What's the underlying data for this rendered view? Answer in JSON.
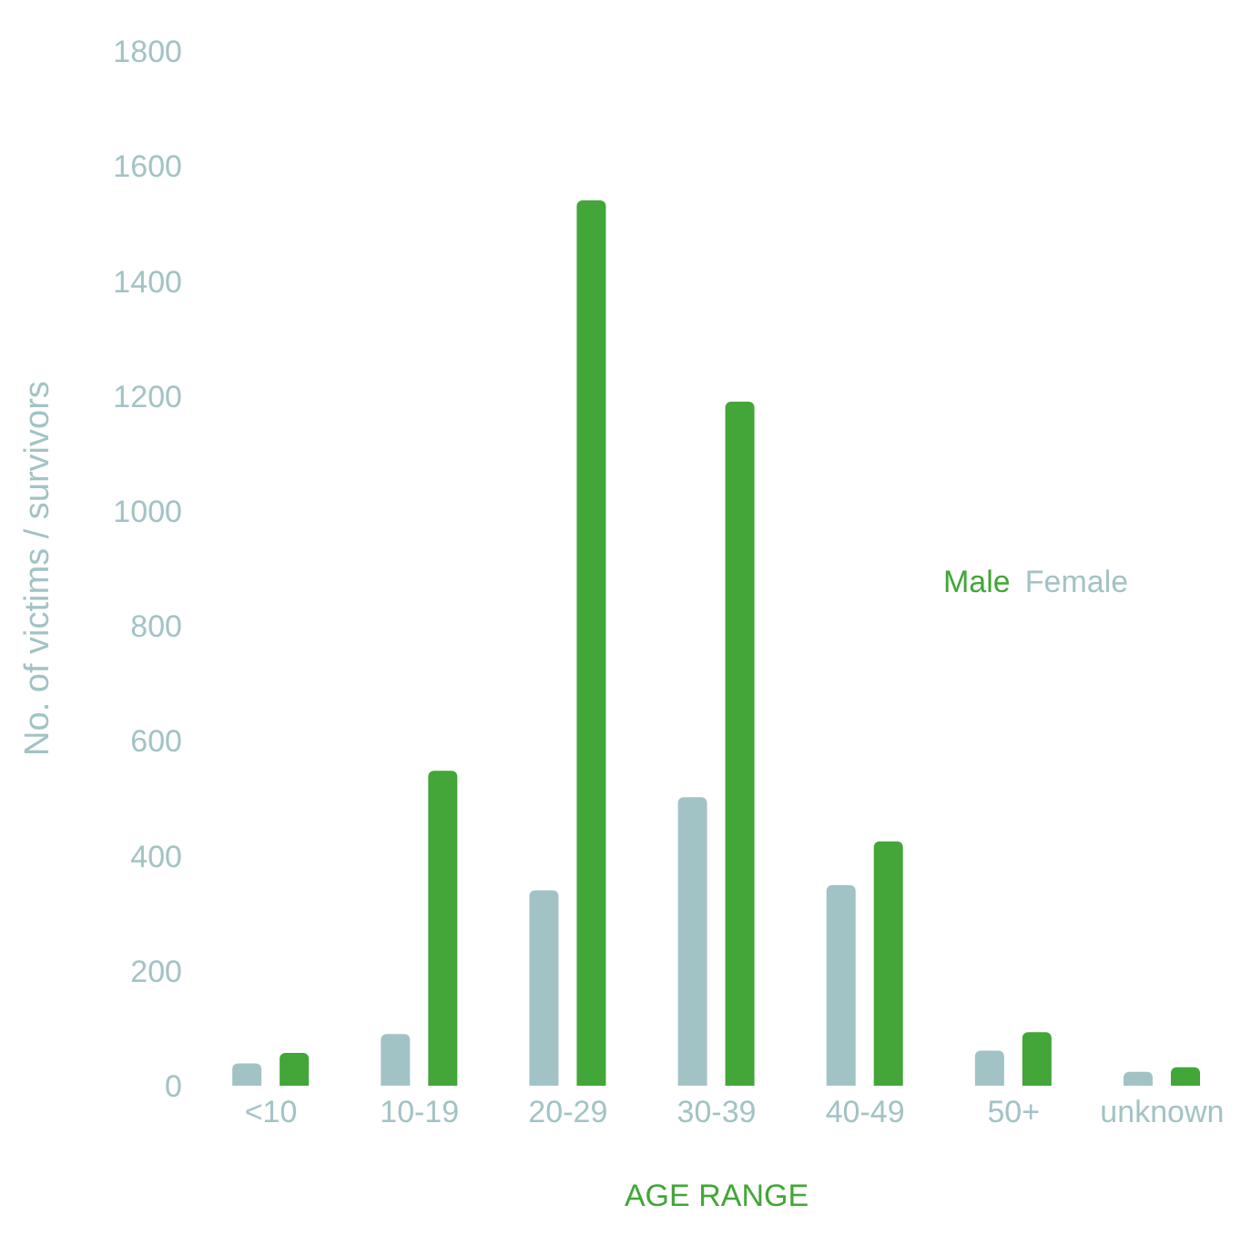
{
  "chart_data": {
    "type": "bar",
    "xlabel": "AGE RANGE",
    "ylabel": "No. of victims / survivors",
    "categories": [
      "<10",
      "10-19",
      "20-29",
      "30-39",
      "40-49",
      "50+",
      "unknown"
    ],
    "series": [
      {
        "name": "Female",
        "color": "#a2c3c5",
        "values": [
          39,
          90,
          340,
          502,
          349,
          61,
          24
        ]
      },
      {
        "name": "Male",
        "color": "#42a638",
        "values": [
          57,
          548,
          1540,
          1190,
          425,
          93,
          32
        ]
      }
    ],
    "ylim": [
      0,
      1800
    ],
    "yticks": [
      0,
      200,
      400,
      600,
      800,
      1000,
      1200,
      1400,
      1600,
      1800
    ]
  }
}
